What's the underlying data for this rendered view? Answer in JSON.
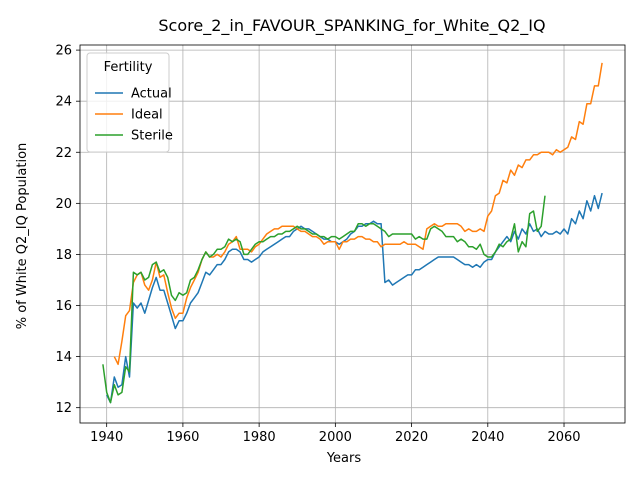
{
  "chart_data": {
    "type": "line",
    "title": "Score_2_in_FAVOUR_SPANKING_for_White_Q2_IQ",
    "xlabel": "Years",
    "ylabel": "% of White Q2_IQ Population",
    "xlim": [
      1933,
      2076
    ],
    "ylim": [
      11.4,
      26.2
    ],
    "xticks": [
      1940,
      1960,
      1980,
      2000,
      2020,
      2040,
      2060
    ],
    "yticks": [
      12,
      14,
      16,
      18,
      20,
      22,
      24,
      26
    ],
    "grid": true,
    "legend": {
      "title": "Fertility",
      "placement": "top-left"
    },
    "series": [
      {
        "name": "Actual",
        "color": "#1f77b4",
        "x": [
          1940,
          1941,
          1942,
          1943,
          1944,
          1945,
          1946,
          1947,
          1948,
          1949,
          1950,
          1951,
          1952,
          1953,
          1954,
          1955,
          1956,
          1957,
          1958,
          1959,
          1960,
          1961,
          1962,
          1963,
          1964,
          1965,
          1966,
          1967,
          1968,
          1969,
          1970,
          1971,
          1972,
          1973,
          1974,
          1975,
          1976,
          1977,
          1978,
          1979,
          1980,
          1981,
          1982,
          1983,
          1984,
          1985,
          1986,
          1987,
          1988,
          1989,
          1990,
          1991,
          1992,
          1993,
          1994,
          1995,
          1996,
          1997,
          1998,
          1999,
          2000,
          2001,
          2002,
          2003,
          2004,
          2005,
          2006,
          2007,
          2008,
          2009,
          2010,
          2011,
          2012,
          2013,
          2014,
          2015,
          2016,
          2017,
          2018,
          2019,
          2020,
          2021,
          2022,
          2023,
          2024,
          2025,
          2026,
          2027,
          2028,
          2029,
          2030,
          2031,
          2032,
          2033,
          2034,
          2035,
          2036,
          2037,
          2038,
          2039,
          2040,
          2041,
          2042,
          2043,
          2044,
          2045,
          2046,
          2047,
          2048,
          2049,
          2050,
          2051,
          2052,
          2053,
          2054,
          2055,
          2056,
          2057,
          2058,
          2059,
          2060,
          2061,
          2062,
          2063,
          2064,
          2065,
          2066,
          2067,
          2068,
          2069,
          2070
        ],
        "values": [
          12.5,
          12.2,
          13.2,
          12.8,
          12.9,
          14.0,
          13.2,
          16.1,
          15.9,
          16.1,
          15.7,
          16.2,
          16.7,
          17.1,
          16.6,
          16.6,
          16.1,
          15.6,
          15.1,
          15.4,
          15.4,
          15.7,
          16.1,
          16.3,
          16.5,
          16.9,
          17.3,
          17.2,
          17.4,
          17.6,
          17.6,
          17.8,
          18.1,
          18.2,
          18.2,
          18.1,
          17.8,
          17.8,
          17.7,
          17.8,
          17.9,
          18.1,
          18.2,
          18.3,
          18.4,
          18.5,
          18.6,
          18.7,
          18.7,
          18.9,
          19.0,
          19.1,
          19.0,
          19.0,
          18.9,
          18.8,
          18.7,
          18.6,
          18.6,
          18.5,
          18.5,
          18.4,
          18.5,
          18.6,
          18.8,
          18.9,
          19.1,
          19.1,
          19.2,
          19.2,
          19.3,
          19.2,
          19.2,
          16.9,
          17.0,
          16.8,
          16.9,
          17.0,
          17.1,
          17.2,
          17.2,
          17.4,
          17.4,
          17.5,
          17.6,
          17.7,
          17.8,
          17.9,
          17.9,
          17.9,
          17.9,
          17.9,
          17.8,
          17.7,
          17.6,
          17.6,
          17.5,
          17.6,
          17.5,
          17.7,
          17.8,
          17.8,
          18.1,
          18.3,
          18.5,
          18.7,
          18.5,
          18.9,
          18.6,
          19.0,
          18.8,
          19.2,
          18.9,
          19.0,
          18.7,
          18.9,
          18.8,
          18.8,
          18.9,
          18.8,
          19.0,
          18.8,
          19.4,
          19.2,
          19.7,
          19.4,
          20.1,
          19.7,
          20.3,
          19.8,
          20.4
        ]
      },
      {
        "name": "Ideal",
        "color": "#ff7f0e",
        "x": [
          1942,
          1943,
          1944,
          1945,
          1946,
          1947,
          1948,
          1949,
          1950,
          1951,
          1952,
          1953,
          1954,
          1955,
          1956,
          1957,
          1958,
          1959,
          1960,
          1961,
          1962,
          1963,
          1964,
          1965,
          1966,
          1967,
          1968,
          1969,
          1970,
          1971,
          1972,
          1973,
          1974,
          1975,
          1976,
          1977,
          1978,
          1979,
          1980,
          1981,
          1982,
          1983,
          1984,
          1985,
          1986,
          1987,
          1988,
          1989,
          1990,
          1991,
          1992,
          1993,
          1994,
          1995,
          1996,
          1997,
          1998,
          1999,
          2000,
          2001,
          2002,
          2003,
          2004,
          2005,
          2006,
          2007,
          2008,
          2009,
          2010,
          2011,
          2012,
          2013,
          2014,
          2015,
          2016,
          2017,
          2018,
          2019,
          2020,
          2021,
          2022,
          2023,
          2024,
          2025,
          2026,
          2027,
          2028,
          2029,
          2030,
          2031,
          2032,
          2033,
          2034,
          2035,
          2036,
          2037,
          2038,
          2039,
          2040,
          2041,
          2042,
          2043,
          2044,
          2045,
          2046,
          2047,
          2048,
          2049,
          2050,
          2051,
          2052,
          2053,
          2054,
          2055,
          2056,
          2057,
          2058,
          2059,
          2060,
          2061,
          2062,
          2063,
          2064,
          2065,
          2066,
          2067,
          2068,
          2069,
          2070
        ],
        "values": [
          14.0,
          13.7,
          14.6,
          15.6,
          15.8,
          16.9,
          17.2,
          17.3,
          16.8,
          16.6,
          17.0,
          17.7,
          17.1,
          17.2,
          16.5,
          15.9,
          15.5,
          15.7,
          15.7,
          16.3,
          16.7,
          17.0,
          17.3,
          17.8,
          18.1,
          17.9,
          17.9,
          18.0,
          17.9,
          18.1,
          18.4,
          18.5,
          18.7,
          18.2,
          18.2,
          18.2,
          18.1,
          18.3,
          18.4,
          18.6,
          18.8,
          18.9,
          19.0,
          19.0,
          19.1,
          19.1,
          19.1,
          19.1,
          19.0,
          18.9,
          18.9,
          18.8,
          18.7,
          18.7,
          18.6,
          18.4,
          18.5,
          18.5,
          18.5,
          18.2,
          18.5,
          18.5,
          18.6,
          18.6,
          18.7,
          18.7,
          18.6,
          18.6,
          18.5,
          18.5,
          18.3,
          18.4,
          18.4,
          18.4,
          18.4,
          18.4,
          18.5,
          18.4,
          18.4,
          18.4,
          18.3,
          18.2,
          19.0,
          19.1,
          19.2,
          19.1,
          19.1,
          19.2,
          19.2,
          19.2,
          19.2,
          19.1,
          18.9,
          19.0,
          18.9,
          18.9,
          19.0,
          18.9,
          19.5,
          19.7,
          20.3,
          20.4,
          20.9,
          20.8,
          21.3,
          21.1,
          21.5,
          21.4,
          21.7,
          21.7,
          21.9,
          21.9,
          22.0,
          22.0,
          22.0,
          21.9,
          22.1,
          22.0,
          22.1,
          22.2,
          22.6,
          22.5,
          23.2,
          23.1,
          23.9,
          23.9,
          24.6,
          24.6,
          25.5
        ]
      },
      {
        "name": "Sterile",
        "color": "#2ca02c",
        "x": [
          1939,
          1940,
          1941,
          1942,
          1943,
          1944,
          1945,
          1946,
          1947,
          1948,
          1949,
          1950,
          1951,
          1952,
          1953,
          1954,
          1955,
          1956,
          1957,
          1958,
          1959,
          1960,
          1961,
          1962,
          1963,
          1964,
          1965,
          1966,
          1967,
          1968,
          1969,
          1970,
          1971,
          1972,
          1973,
          1974,
          1975,
          1976,
          1977,
          1978,
          1979,
          1980,
          1981,
          1982,
          1983,
          1984,
          1985,
          1986,
          1987,
          1988,
          1989,
          1990,
          1991,
          1992,
          1993,
          1994,
          1995,
          1996,
          1997,
          1998,
          1999,
          2000,
          2001,
          2002,
          2003,
          2004,
          2005,
          2006,
          2007,
          2008,
          2009,
          2010,
          2011,
          2012,
          2013,
          2014,
          2015,
          2016,
          2017,
          2018,
          2019,
          2020,
          2021,
          2022,
          2023,
          2024,
          2025,
          2026,
          2027,
          2028,
          2029,
          2030,
          2031,
          2032,
          2033,
          2034,
          2035,
          2036,
          2037,
          2038,
          2039,
          2040,
          2041,
          2042,
          2043,
          2044,
          2045,
          2046,
          2047,
          2048,
          2049,
          2050,
          2051,
          2052,
          2053,
          2054,
          2055
        ],
        "values": [
          13.7,
          12.6,
          12.2,
          12.9,
          12.5,
          12.6,
          13.6,
          13.4,
          17.3,
          17.2,
          17.3,
          17.0,
          17.1,
          17.6,
          17.7,
          17.3,
          17.4,
          17.1,
          16.4,
          16.2,
          16.5,
          16.4,
          16.5,
          17.0,
          17.1,
          17.4,
          17.8,
          18.1,
          17.9,
          18.0,
          18.2,
          18.2,
          18.3,
          18.6,
          18.5,
          18.6,
          18.5,
          18.0,
          18.0,
          18.2,
          18.4,
          18.5,
          18.5,
          18.6,
          18.7,
          18.7,
          18.8,
          18.8,
          18.9,
          18.9,
          19.0,
          19.1,
          19.0,
          19.0,
          18.9,
          18.8,
          18.8,
          18.7,
          18.7,
          18.6,
          18.7,
          18.7,
          18.6,
          18.7,
          18.8,
          18.9,
          18.9,
          19.2,
          19.2,
          19.1,
          19.2,
          19.2,
          19.1,
          19.0,
          18.9,
          18.7,
          18.8,
          18.8,
          18.8,
          18.8,
          18.8,
          18.8,
          18.6,
          18.7,
          18.6,
          18.6,
          19.0,
          19.1,
          19.0,
          18.9,
          18.7,
          18.7,
          18.7,
          18.5,
          18.6,
          18.5,
          18.3,
          18.3,
          18.2,
          18.4,
          18.0,
          17.9,
          17.9,
          18.1,
          18.4,
          18.3,
          18.5,
          18.6,
          19.2,
          18.1,
          18.5,
          18.3,
          19.6,
          19.7,
          18.9,
          19.1,
          20.3
        ]
      }
    ]
  }
}
